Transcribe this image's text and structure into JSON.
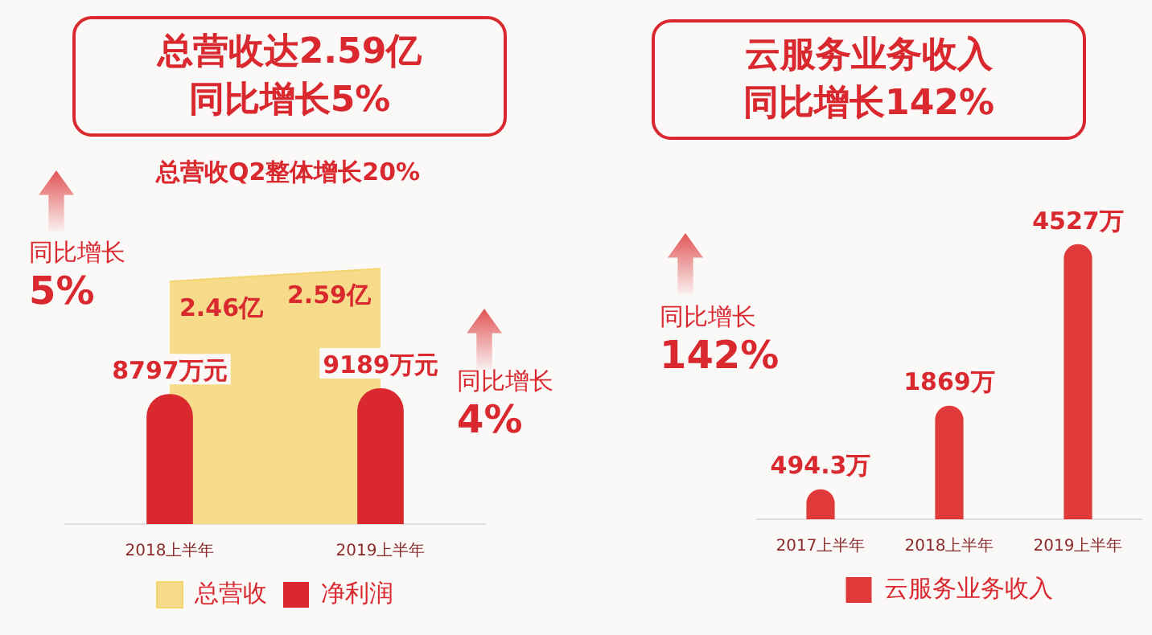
{
  "chart_data": [
    {
      "type": "bar",
      "title": "总营收达2.59亿同比增长5%",
      "subtitle": "总营收Q2整体增长20%",
      "categories": [
        "2018上半年",
        "2019上半年"
      ],
      "series": [
        {
          "name": "总营收",
          "type": "area",
          "axis": "y2",
          "color": "#f5d46e",
          "values": [
            2.46,
            2.59
          ],
          "value_labels": [
            "2.46亿",
            "2.59亿"
          ]
        },
        {
          "name": "净利润",
          "color": "#d9282e",
          "values": [
            8797,
            9189
          ],
          "value_labels": [
            "8797万元",
            "9189万元"
          ]
        }
      ],
      "tick_labels": "x",
      "grid": false,
      "legend": "bottom",
      "annotations": [
        "同比增长\n5%",
        "同比增长\n4%"
      ]
    },
    {
      "type": "bar",
      "title": "云服务业务收入同比增长142%",
      "categories": [
        "2017上半年",
        "2018上半年",
        "2019上半年"
      ],
      "series": [
        {
          "name": "云服务业务收入",
          "color": "#e0393a",
          "values": [
            494.3,
            1869,
            4527
          ],
          "value_labels": [
            "494.3万",
            "1869万",
            "4527万"
          ]
        }
      ],
      "tick_labels": "x",
      "grid": false,
      "legend": "bottom",
      "annotations": [
        "同比增长\n142%"
      ]
    }
  ]
}
